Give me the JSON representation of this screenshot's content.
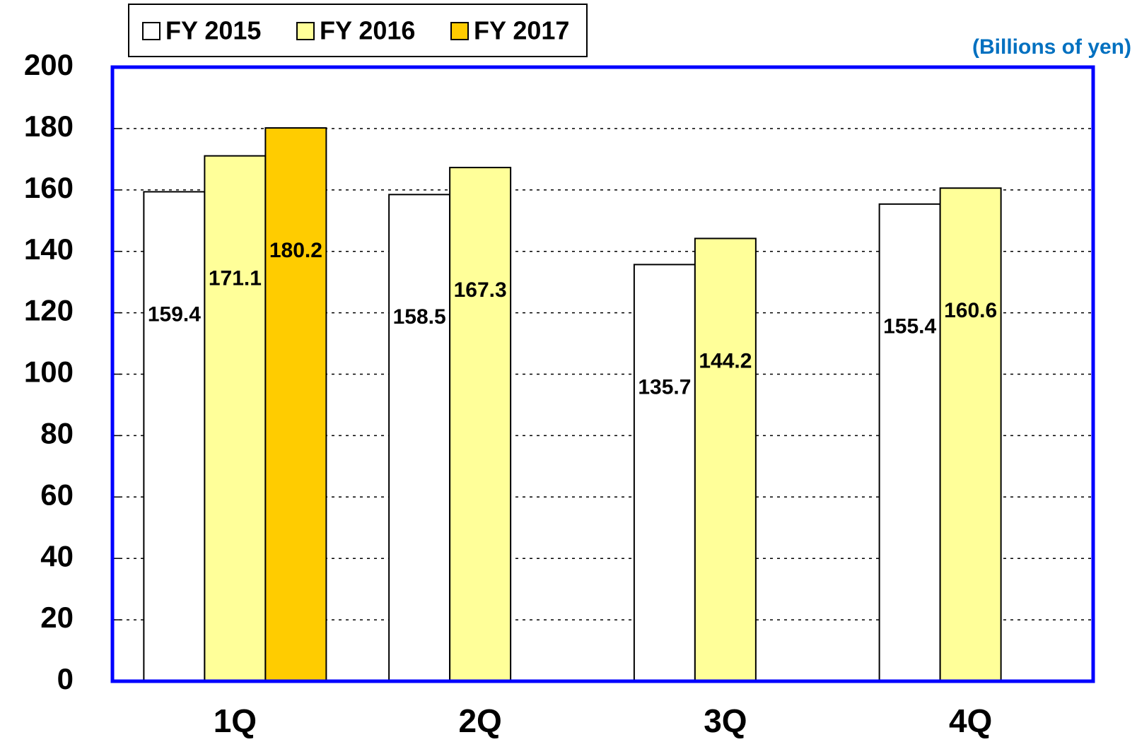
{
  "chart_data": {
    "type": "bar",
    "unit_label": "(Billions of yen)",
    "categories": [
      "1Q",
      "2Q",
      "3Q",
      "4Q"
    ],
    "series": [
      {
        "name": "FY 2015",
        "color": "#ffffff",
        "values": [
          159.4,
          158.5,
          135.7,
          155.4
        ]
      },
      {
        "name": "FY 2016",
        "color": "#ffff99",
        "values": [
          171.1,
          167.3,
          144.2,
          160.6
        ]
      },
      {
        "name": "FY 2017",
        "color": "#ffcc00",
        "values": [
          180.2,
          null,
          null,
          null
        ]
      }
    ],
    "ylim": [
      0,
      200
    ],
    "yticks": [
      0,
      20,
      40,
      60,
      80,
      100,
      120,
      140,
      160,
      180,
      200
    ],
    "grid": true,
    "legend": "top-left",
    "frame_color": "#0000ff"
  }
}
